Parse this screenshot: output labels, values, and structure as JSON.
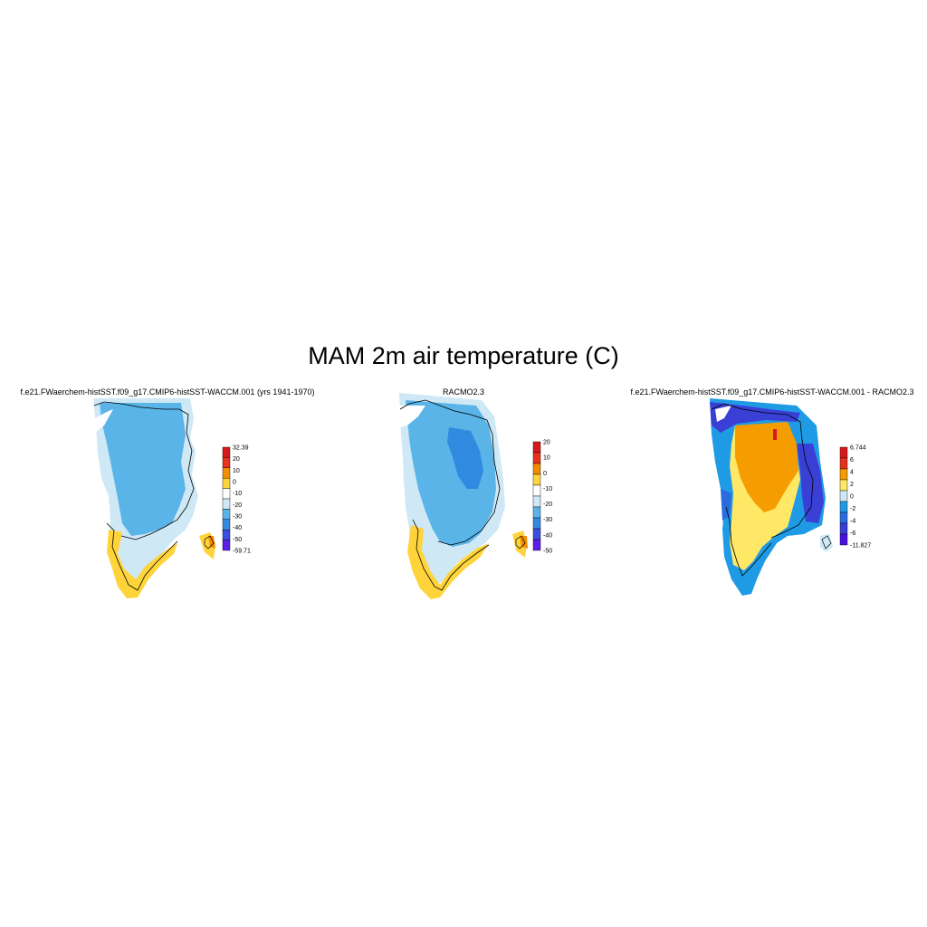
{
  "title": "MAM 2m air temperature (C)",
  "panels": [
    {
      "title": "f.e21.FWaerchem-histSST.f09_g17.CMIP6-histSST-WACCM.001 (yrs 1941-1970)",
      "colorbar": {
        "labels": [
          "32.39",
          "20",
          "10",
          "0",
          "-10",
          "-20",
          "-30",
          "-40",
          "-50",
          "-59.71"
        ],
        "colors": [
          "#d7191c",
          "#e8321e",
          "#f28c00",
          "#ffd43b",
          "#ffffff",
          "#cfe8f5",
          "#5ab4e8",
          "#2f8ae0",
          "#3a4fe0",
          "#5b1fe6"
        ]
      }
    },
    {
      "title": "RACMO2.3",
      "colorbar": {
        "labels": [
          "20",
          "10",
          "0",
          "-10",
          "-20",
          "-30",
          "-40",
          "-50"
        ],
        "colors": [
          "#d7191c",
          "#e8321e",
          "#f28c00",
          "#ffd43b",
          "#ffffff",
          "#cfe8f5",
          "#5ab4e8",
          "#2f8ae0",
          "#3a4fe0",
          "#5b1fe6"
        ]
      }
    },
    {
      "title": "f.e21.FWaerchem-histSST.f09_g17.CMIP6-histSST-WACCM.001 - RACMO2.3",
      "colorbar": {
        "labels": [
          "6.744",
          "6",
          "4",
          "2",
          "0",
          "-2",
          "-4",
          "-6",
          "-11.827"
        ],
        "colors": [
          "#d7191c",
          "#e8321e",
          "#f59d00",
          "#ffe866",
          "#cfe8f5",
          "#1f9be6",
          "#2b6be0",
          "#3a3fd6",
          "#4a10e0"
        ]
      }
    }
  ]
}
